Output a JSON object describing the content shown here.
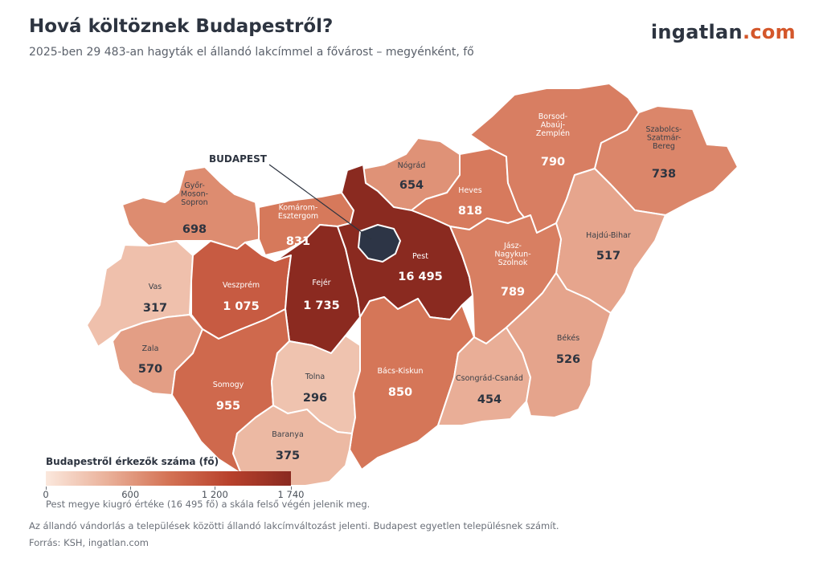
{
  "header": {
    "title": "Hová költöznek Budapestről?",
    "subtitle": "2025-ben 29 483-an hagyták el állandó lakcímmel a fővárost – megyénként, fő"
  },
  "logo": {
    "main": "ingatlan",
    "suffix": ".com"
  },
  "colors": {
    "budapest": "#2d3546",
    "accent": "#d4572b",
    "scale_low": "#fbe8dd",
    "scale_high": "#8a2a20"
  },
  "map": {
    "budapest_label": "BUDAPEST",
    "regions": [
      {
        "id": "gyor",
        "lines": [
          "Győr-",
          "Moson-",
          "Sopron"
        ],
        "value": "698"
      },
      {
        "id": "komarom",
        "lines": [
          "Komárom-",
          "Esztergom"
        ],
        "value": "831"
      },
      {
        "id": "nograd",
        "lines": [
          "Nógrád"
        ],
        "value": "654"
      },
      {
        "id": "heves",
        "lines": [
          "Heves"
        ],
        "value": "818"
      },
      {
        "id": "borsod",
        "lines": [
          "Borsod-",
          "Abaúj-",
          "Zemplén"
        ],
        "value": "790"
      },
      {
        "id": "szabolcs",
        "lines": [
          "Szabolcs-",
          "Szatmár-",
          "Bereg"
        ],
        "value": "738"
      },
      {
        "id": "hajdu",
        "lines": [
          "Hajdú-Bihar"
        ],
        "value": "517"
      },
      {
        "id": "vas",
        "lines": [
          "Vas"
        ],
        "value": "317"
      },
      {
        "id": "veszprem",
        "lines": [
          "Veszprém"
        ],
        "value": "1 075"
      },
      {
        "id": "fejer",
        "lines": [
          "Fejér"
        ],
        "value": "1 735"
      },
      {
        "id": "pest",
        "lines": [
          "Pest"
        ],
        "value": "16 495"
      },
      {
        "id": "jasz",
        "lines": [
          "Jász-",
          "Nagykun-",
          "Szolnok"
        ],
        "value": "789"
      },
      {
        "id": "zala",
        "lines": [
          "Zala"
        ],
        "value": "570"
      },
      {
        "id": "somogy",
        "lines": [
          "Somogy"
        ],
        "value": "955"
      },
      {
        "id": "tolna",
        "lines": [
          "Tolna"
        ],
        "value": "296"
      },
      {
        "id": "bacs",
        "lines": [
          "Bács-Kiskun"
        ],
        "value": "850"
      },
      {
        "id": "csongrad",
        "lines": [
          "Csongrád-Csanád"
        ],
        "value": "454"
      },
      {
        "id": "bekes",
        "lines": [
          "Békés"
        ],
        "value": "526"
      },
      {
        "id": "baranya",
        "lines": [
          "Baranya"
        ],
        "value": "375"
      }
    ]
  },
  "legend": {
    "title": "Budapestről érkezők száma (fő)",
    "min": 0,
    "max": 1740,
    "ticks": [
      "0",
      "600",
      "1 200",
      "1 740"
    ],
    "tick_values": [
      0,
      600,
      1200,
      1740
    ],
    "note": "Pest megye kiugró értéke (16 495 fő) a skála felső végén jelenik meg."
  },
  "footnote": "Az állandó vándorlás a települések közötti állandó lakcímváltozást jelenti. Budapest egyetlen településnek számít.",
  "source": "Forrás: KSH, ingatlan.com"
}
